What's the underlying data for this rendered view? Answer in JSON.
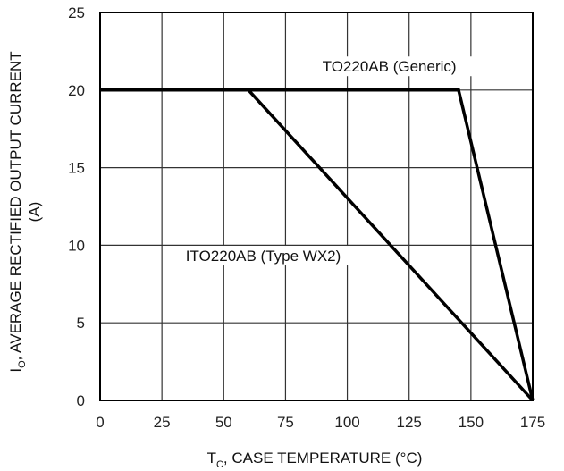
{
  "chart_data": {
    "type": "line",
    "xlim": [
      0,
      175
    ],
    "ylim": [
      0,
      25
    ],
    "xticks": [
      0,
      25,
      50,
      75,
      100,
      125,
      150,
      175
    ],
    "yticks": [
      0,
      5,
      10,
      15,
      20,
      25
    ],
    "xtick_labels": [
      "0",
      "25",
      "50",
      "75",
      "100",
      "125",
      "150",
      "175"
    ],
    "ytick_labels": [
      "0",
      "5",
      "10",
      "15",
      "20",
      "25"
    ],
    "grid": true,
    "xlabel": {
      "main": "T",
      "sub": "C",
      "rest": ", CASE TEMPERATURE (°C)"
    },
    "ylabel": {
      "main": "I",
      "sub": "O",
      "rest": ", AVERAGE RECTIFIED OUTPUT CURRENT",
      "line2": "(A)"
    },
    "series": [
      {
        "name": "TO220AB (Generic)",
        "x": [
          0,
          145,
          175
        ],
        "y": [
          20,
          20,
          0
        ]
      },
      {
        "name": "ITO220AB (Type WX2)",
        "x": [
          0,
          60,
          175
        ],
        "y": [
          20,
          20,
          0
        ]
      }
    ],
    "annotations": [
      {
        "text": "TO220AB (Generic)",
        "x": 117,
        "y": 21.3
      },
      {
        "text": "ITO220AB (Type WX2)",
        "x": 66,
        "y": 9.1
      }
    ],
    "colors": {
      "line": "#000000",
      "grid": "#333333",
      "text": "#111111"
    }
  }
}
